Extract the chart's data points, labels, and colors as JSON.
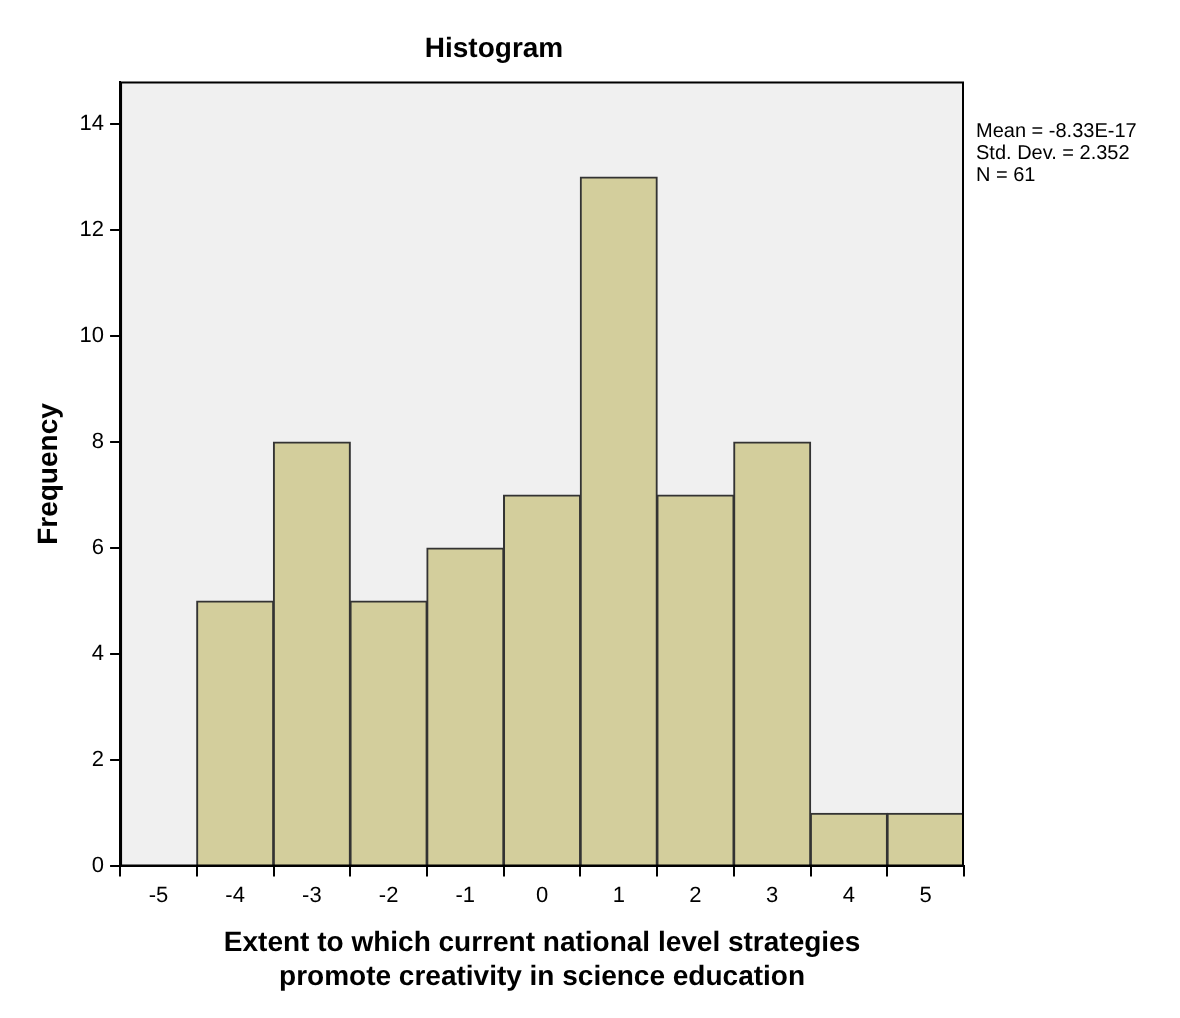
{
  "chart_data": {
    "type": "histogram",
    "title": "Histogram",
    "xlabel": "Extent to which current national level strategies\npromote creativity in science education",
    "ylabel": "Frequency",
    "bins": [
      -4.5,
      -3.5,
      -2.5,
      -1.5,
      -0.5,
      0.5,
      1.5,
      2.5,
      3.5,
      4.5,
      5.5
    ],
    "values": [
      5,
      8,
      5,
      6,
      7,
      13,
      7,
      8,
      1,
      1
    ],
    "color": "#d3ce9c",
    "xlim": [
      -5.5,
      5.5
    ],
    "xticks": [
      -5,
      -4,
      -3,
      -2,
      -1,
      0,
      1,
      2,
      3,
      4,
      5
    ],
    "ylim": [
      0,
      14.8
    ],
    "yticks": [
      0,
      2,
      4,
      6,
      8,
      10,
      12,
      14
    ],
    "annotations": [
      "Mean = -8.33E-17",
      "Std. Dev. = 2.352",
      "N = 61"
    ],
    "legend": false
  }
}
